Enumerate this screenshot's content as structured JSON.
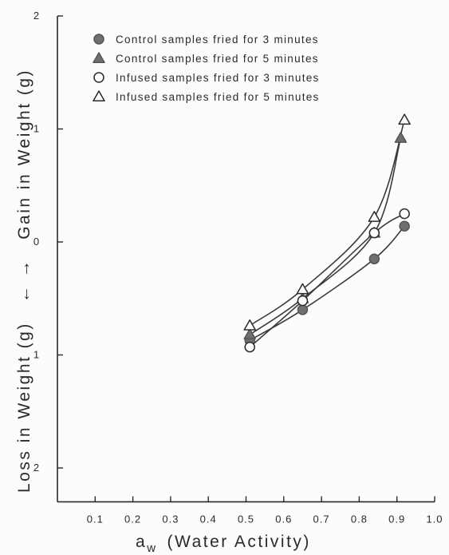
{
  "chart_data": {
    "type": "line",
    "xlabel_main": "a",
    "xlabel_sub": "w",
    "xlabel_rest": "(Water Activity)",
    "ylabel_top": "Gain in Weight (g)",
    "ylabel_arrow": "←  →",
    "ylabel_bottom": "Loss in Weight (g)",
    "x_ticks": [
      "0.1",
      "0.2",
      "0.3",
      "0.4",
      "0.5",
      "0.6",
      "0.7",
      "0.8",
      "0.9",
      "1.0"
    ],
    "y_ticks": [
      {
        "value": 2,
        "label": "2"
      },
      {
        "value": 1,
        "label": "1"
      },
      {
        "value": 0,
        "label": "0"
      },
      {
        "value": -1,
        "label": "1"
      },
      {
        "value": -2,
        "label": "2"
      }
    ],
    "xlim": [
      0.0,
      1.0
    ],
    "ylim": [
      -2.3,
      2.0
    ],
    "series": [
      {
        "name": "Control samples fried for 3 minutes",
        "marker": "filled-circle",
        "points": [
          [
            0.51,
            -0.87
          ],
          [
            0.65,
            -0.6
          ],
          [
            0.84,
            -0.15
          ],
          [
            0.92,
            0.14
          ]
        ]
      },
      {
        "name": "Control samples fried for 5 minutes",
        "marker": "filled-triangle",
        "points": [
          [
            0.51,
            -0.82
          ],
          [
            0.65,
            -0.5
          ],
          [
            0.84,
            0.08
          ],
          [
            0.91,
            0.92
          ]
        ]
      },
      {
        "name": "Infused samples fried for 3 minutes",
        "marker": "open-circle",
        "points": [
          [
            0.51,
            -0.93
          ],
          [
            0.65,
            -0.52
          ],
          [
            0.84,
            0.08
          ],
          [
            0.92,
            0.25
          ]
        ]
      },
      {
        "name": "Infused samples fried for 5 minutes",
        "marker": "open-triangle",
        "points": [
          [
            0.51,
            -0.74
          ],
          [
            0.65,
            -0.42
          ],
          [
            0.84,
            0.22
          ],
          [
            0.92,
            1.08
          ]
        ]
      }
    ]
  }
}
